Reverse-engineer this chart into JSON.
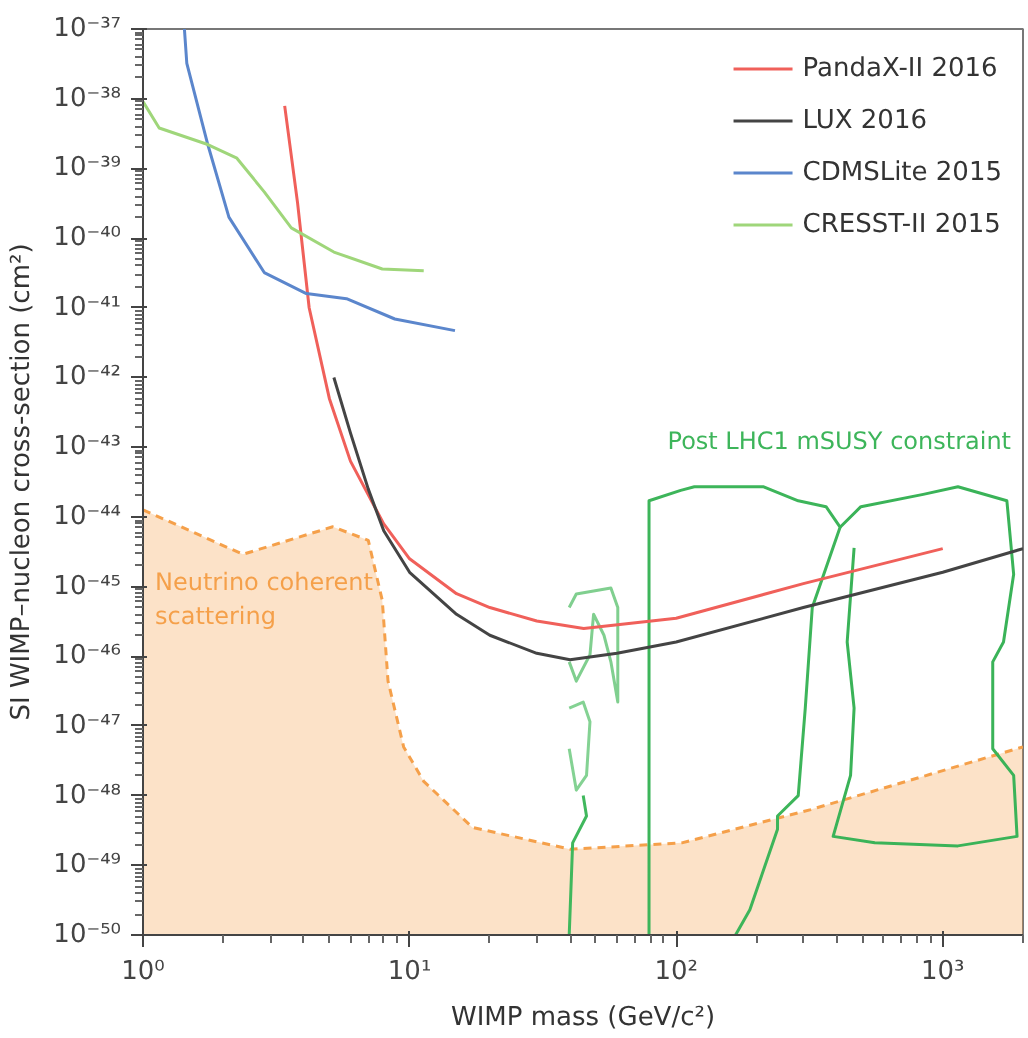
{
  "chart_data": {
    "type": "line",
    "xlabel": "WIMP mass (GeV/c²)",
    "ylabel": "SI WIMP–nucleon cross-section (cm²)",
    "log": "xy",
    "grid": false,
    "legend": "top right",
    "xlim": [
      1,
      2000
    ],
    "ylim": [
      1e-50,
      1e-37
    ],
    "xticks": [
      {
        "value": 1,
        "label": "10⁰"
      },
      {
        "value": 10,
        "label": "10¹"
      },
      {
        "value": 100,
        "label": "10²"
      },
      {
        "value": 1000,
        "label": "10³"
      }
    ],
    "yticks": [
      {
        "value": 1e-50,
        "label": "10⁻⁵⁰"
      },
      {
        "value": 1e-49,
        "label": "10⁻⁴⁹"
      },
      {
        "value": 1e-48,
        "label": "10⁻⁴⁸"
      },
      {
        "value": 1e-47,
        "label": "10⁻⁴⁷"
      },
      {
        "value": 1e-46,
        "label": "10⁻⁴⁶"
      },
      {
        "value": 1e-45,
        "label": "10⁻⁴⁵"
      },
      {
        "value": 1e-44,
        "label": "10⁻⁴⁴"
      },
      {
        "value": 1e-43,
        "label": "10⁻⁴³"
      },
      {
        "value": 1e-42,
        "label": "10⁻⁴²"
      },
      {
        "value": 1e-41,
        "label": "10⁻⁴¹"
      },
      {
        "value": 1e-40,
        "label": "10⁻⁴⁰"
      },
      {
        "value": 1e-39,
        "label": "10⁻³⁹"
      },
      {
        "value": 1e-38,
        "label": "10⁻³⁸"
      },
      {
        "value": 1e-37,
        "label": "10⁻³⁷"
      }
    ],
    "annotations": [
      "Neutrino coherent\nscattering",
      "Post LHC1 mSUSY constraint"
    ],
    "series": [
      {
        "type": "area",
        "color": "#f5a04a",
        "line_style": "dashed",
        "x": [
          1,
          2.37,
          5.15,
          7.0,
          7.9,
          8.3,
          9.5,
          11.3,
          17.2,
          40,
          105,
          320,
          2000
        ],
        "values": [
          1.26e-44,
          2.9e-45,
          7.2e-45,
          4.6e-45,
          6.3e-46,
          4.4e-47,
          5e-48,
          1.6e-48,
          3.5e-49,
          1.7e-49,
          2.1e-49,
          6.3e-49,
          5e-48
        ]
      },
      {
        "color": "#3db55a",
        "x": [
          79.1,
          79.1,
          104,
          117,
          213,
          287,
          365,
          412,
          324,
          305,
          287,
          240,
          240,
          189,
          167
        ],
        "values": [
          1e-50,
          1.7e-44,
          2.4e-44,
          2.7e-44,
          2.7e-44,
          1.7e-44,
          1.4e-44,
          7.1e-45,
          5e-46,
          1.8e-47,
          1e-48,
          5.1e-49,
          3.3e-49,
          2.3e-50,
          1e-50
        ]
      },
      {
        "color": "#3ab358",
        "x": [
          412,
          493,
          845,
          1140,
          1740,
          1845,
          1690,
          1540,
          1540,
          1845,
          1900,
          1140,
          556,
          388,
          451,
          465,
          438,
          465
        ],
        "values": [
          7.1e-45,
          1.4e-44,
          2.1e-44,
          2.7e-44,
          1.7e-44,
          1.5e-45,
          1.6e-46,
          8.3e-47,
          4.7e-48,
          1.95e-48,
          2.6e-49,
          1.9e-49,
          2.1e-49,
          2.6e-49,
          1.95e-48,
          1.8e-47,
          1.6e-46,
          3.6e-45
        ]
      },
      {
        "color": "#40b85d",
        "x": [
          39.7,
          40.9,
          46.1,
          44.8
        ],
        "values": [
          1e-50,
          2.1e-49,
          5.1e-49,
          1e-48
        ]
      },
      {
        "color": "#80cf8f",
        "x": [
          39.7,
          42.2,
          56.9,
          60.4,
          60.4,
          56.9,
          53.6,
          49.0,
          47.5,
          42.2,
          39.7
        ],
        "values": [
          5e-46,
          7.8e-46,
          9.5e-46,
          5e-46,
          2.2e-47,
          8.3e-47,
          2e-46,
          4e-46,
          1.05e-46,
          4.4e-47,
          8.3e-47
        ]
      },
      {
        "color": "#84d293",
        "x": [
          39.7,
          44.8,
          47.5,
          46.1,
          42.2,
          39.7
        ],
        "values": [
          1.8e-47,
          2.2e-47,
          1.15e-47,
          1.95e-48,
          1.2e-48,
          4.7e-48
        ]
      },
      {
        "name": "PandaX-II 2016",
        "color": "#f0605a",
        "x": [
          3.4,
          3.8,
          4.2,
          5,
          6,
          8,
          10,
          15,
          20,
          30,
          45,
          100,
          300,
          1000
        ],
        "values": [
          7.9e-39,
          3.2e-40,
          1e-41,
          5e-43,
          6.3e-44,
          7.9e-45,
          2.5e-45,
          7.9e-46,
          5e-46,
          3.2e-46,
          2.5e-46,
          3.5e-46,
          1.1e-45,
          3.5e-45
        ]
      },
      {
        "name": "LUX 2016",
        "color": "#444444",
        "x": [
          5.2,
          6,
          7,
          8,
          10,
          15,
          20,
          30,
          40,
          60,
          100,
          300,
          1000,
          2000
        ],
        "values": [
          1e-42,
          1.6e-43,
          2.5e-44,
          6.3e-45,
          1.6e-45,
          4e-46,
          2e-46,
          1.1e-46,
          8.9e-47,
          1.1e-46,
          1.6e-46,
          5e-46,
          1.6e-45,
          3.5e-45
        ]
      },
      {
        "name": "CDMSLite 2015",
        "color": "#5b86cc",
        "x": [
          1.43,
          1.46,
          1.75,
          2.1,
          2.85,
          4.1,
          5.8,
          8.8,
          14.8
        ],
        "values": [
          1e-37,
          3.2e-38,
          2.2e-39,
          2e-40,
          3.2e-41,
          1.6e-41,
          1.35e-41,
          6.9e-42,
          4.7e-42
        ]
      },
      {
        "name": "CRESST-II 2015",
        "color": "#9fd67a",
        "x": [
          1,
          1.15,
          1.75,
          2.25,
          2.85,
          3.6,
          5.2,
          7.9,
          11.3
        ],
        "values": [
          9.1e-39,
          3.8e-39,
          2.2e-39,
          1.4e-39,
          4.6e-40,
          1.4e-40,
          6.3e-41,
          3.6e-41,
          3.4e-41
        ]
      }
    ]
  }
}
